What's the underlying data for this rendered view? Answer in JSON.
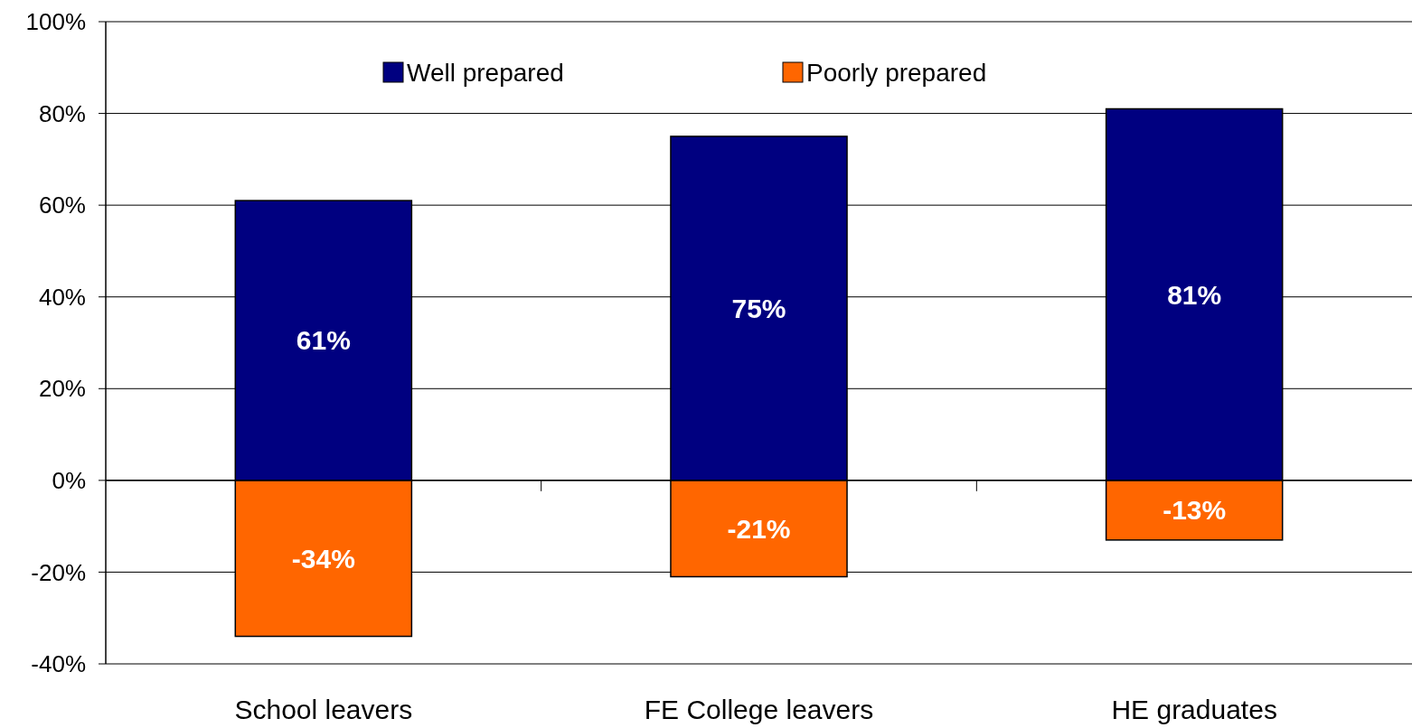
{
  "chart_data": {
    "type": "bar",
    "stacked": true,
    "categories": [
      "School leavers",
      "FE College leavers",
      "HE graduates"
    ],
    "series": [
      {
        "name": "Well prepared",
        "color": "#000080",
        "values": [
          61,
          75,
          81
        ],
        "value_labels": [
          "61%",
          "75%",
          "81%"
        ]
      },
      {
        "name": "Poorly prepared",
        "color": "#ff6600",
        "values": [
          -34,
          -21,
          -13
        ],
        "value_labels": [
          "-34%",
          "-21%",
          "-13%"
        ]
      }
    ],
    "ylim": [
      -40,
      100
    ],
    "yticks": [
      {
        "value": -40,
        "label": "-40%"
      },
      {
        "value": -20,
        "label": "-20%"
      },
      {
        "value": 0,
        "label": "0%"
      },
      {
        "value": 20,
        "label": "20%"
      },
      {
        "value": 40,
        "label": "40%"
      },
      {
        "value": 60,
        "label": "60%"
      },
      {
        "value": 80,
        "label": "80%"
      },
      {
        "value": 100,
        "label": "100%"
      }
    ],
    "grid": "y",
    "legend": "top"
  }
}
